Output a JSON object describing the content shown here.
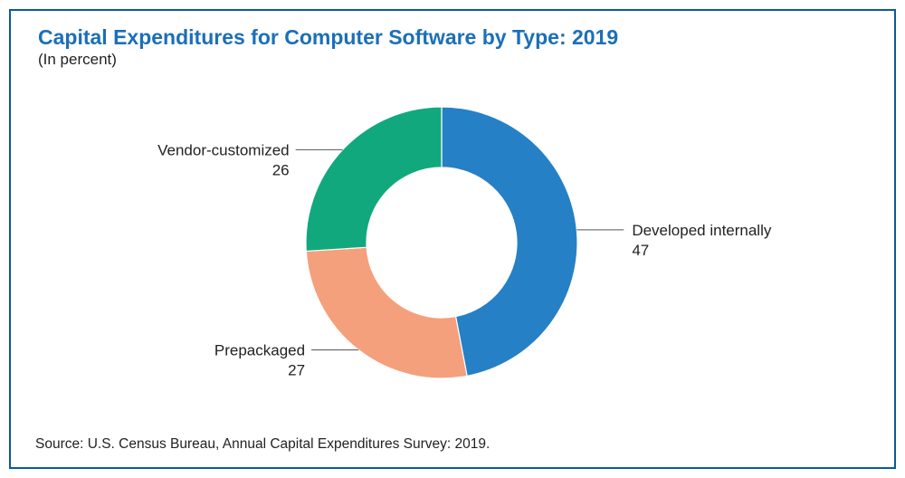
{
  "title": "Capital Expenditures for Computer Software by Type: 2019",
  "subtitle": "(In percent)",
  "source": "Source: U.S. Census Bureau, Annual Capital Expenditures Survey: 2019.",
  "colors": {
    "frame": "#0a5a96",
    "title": "#1b6fb8",
    "developed_internally": "#2580c6",
    "prepackaged": "#f5a07c",
    "vendor_customized": "#12a87e"
  },
  "chart_data": {
    "type": "pie",
    "variant": "donut",
    "title": "Capital Expenditures for Computer Software by Type: 2019",
    "subtitle": "(In percent)",
    "unit": "percent",
    "slices": [
      {
        "label": "Developed internally",
        "value": 47,
        "color": "#2580c6"
      },
      {
        "label": "Prepackaged",
        "value": 27,
        "color": "#f5a07c"
      },
      {
        "label": "Vendor-customized",
        "value": 26,
        "color": "#12a87e"
      }
    ],
    "start": "12 o'clock",
    "direction": "clockwise",
    "legend": "none (direct labels with leader lines)"
  }
}
